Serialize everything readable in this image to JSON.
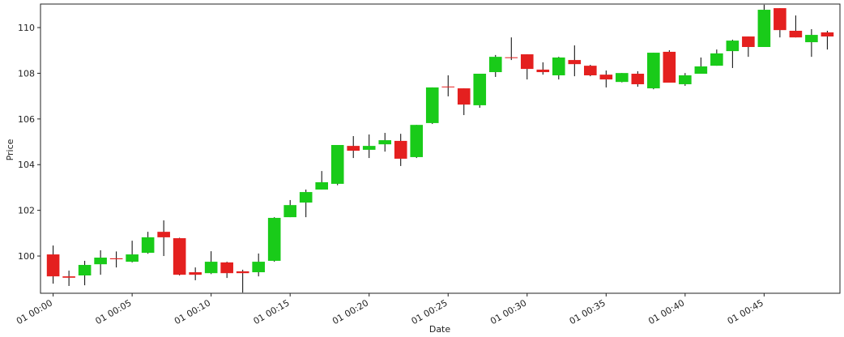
{
  "chart_data": {
    "type": "candlestick",
    "x_label": "Date",
    "y_label": "Price",
    "x": [
      0,
      1,
      2,
      3,
      4,
      5,
      6,
      7,
      8,
      9,
      10,
      11,
      12,
      13,
      14,
      15,
      16,
      17,
      18,
      19,
      20,
      21,
      22,
      23,
      24,
      25,
      26,
      27,
      28,
      29,
      30,
      31,
      32,
      33,
      34,
      35,
      36,
      37,
      38,
      39,
      40,
      41,
      42,
      43,
      44,
      45,
      46,
      47,
      48,
      49
    ],
    "open": [
      100.07,
      99.11,
      99.15,
      99.64,
      99.9,
      99.75,
      100.14,
      101.06,
      100.78,
      99.29,
      99.25,
      99.72,
      99.33,
      99.29,
      99.79,
      101.7,
      102.34,
      102.91,
      103.16,
      104.82,
      104.65,
      104.89,
      105.04,
      104.33,
      105.82,
      107.42,
      107.34,
      106.6,
      108.05,
      108.7,
      108.83,
      108.16,
      107.91,
      108.58,
      108.33,
      107.94,
      107.62,
      107.98,
      107.34,
      108.94,
      107.52,
      107.98,
      108.33,
      108.97,
      109.61,
      109.15,
      110.85,
      109.86,
      109.36,
      109.79
    ],
    "high": [
      100.46,
      99.36,
      99.79,
      100.25,
      100.2,
      100.67,
      101.06,
      101.56,
      100.8,
      99.5,
      100.21,
      99.75,
      99.4,
      100.11,
      101.7,
      102.45,
      102.91,
      103.72,
      104.86,
      105.25,
      105.32,
      105.39,
      105.35,
      105.74,
      107.38,
      107.91,
      107.34,
      107.98,
      108.8,
      109.57,
      108.83,
      108.48,
      108.72,
      109.22,
      108.37,
      108.12,
      108.01,
      108.09,
      108.9,
      109.01,
      108.01,
      108.69,
      109.04,
      109.47,
      109.61,
      111.0,
      110.85,
      110.53,
      109.93,
      109.86
    ],
    "low": [
      98.79,
      98.69,
      98.72,
      99.18,
      99.5,
      99.72,
      100.1,
      100.0,
      99.15,
      98.94,
      99.21,
      99.04,
      98.4,
      99.11,
      99.75,
      101.7,
      101.7,
      102.91,
      103.1,
      104.29,
      104.29,
      104.57,
      103.94,
      104.29,
      105.78,
      106.99,
      106.17,
      106.49,
      107.84,
      108.58,
      107.73,
      107.94,
      107.73,
      107.87,
      107.87,
      107.38,
      107.6,
      107.41,
      107.3,
      107.59,
      107.45,
      107.98,
      108.33,
      108.23,
      108.72,
      109.15,
      109.57,
      109.57,
      108.72,
      109.04
    ],
    "close": [
      99.11,
      99.05,
      99.61,
      99.93,
      99.86,
      100.07,
      100.82,
      100.82,
      99.18,
      99.18,
      99.75,
      99.25,
      99.25,
      99.75,
      101.67,
      102.23,
      102.8,
      103.23,
      104.86,
      104.61,
      104.82,
      105.07,
      104.26,
      105.74,
      107.38,
      107.4,
      106.63,
      107.98,
      108.72,
      108.68,
      108.19,
      108.05,
      108.69,
      108.4,
      107.91,
      107.73,
      108.01,
      107.52,
      108.9,
      107.59,
      107.91,
      108.3,
      108.87,
      109.43,
      109.15,
      110.78,
      109.89,
      109.57,
      109.68,
      109.61
    ],
    "up_color": "#19cb19",
    "down_color": "#e4201f",
    "xlim": [
      -0.8,
      49.8
    ],
    "xticks": [
      {
        "value": 0,
        "label": "01 00:00"
      },
      {
        "value": 5,
        "label": "01 00:05"
      },
      {
        "value": 10,
        "label": "01 00:10"
      },
      {
        "value": 15,
        "label": "01 00:15"
      },
      {
        "value": 20,
        "label": "01 00:20"
      },
      {
        "value": 25,
        "label": "01 00:25"
      },
      {
        "value": 30,
        "label": "01 00:30"
      },
      {
        "value": 35,
        "label": "01 00:35"
      },
      {
        "value": 40,
        "label": "01 00:40"
      },
      {
        "value": 45,
        "label": "01 00:45"
      }
    ],
    "ylim": [
      98.37,
      111.03
    ],
    "yticks": [
      100,
      102,
      104,
      106,
      108,
      110
    ]
  }
}
